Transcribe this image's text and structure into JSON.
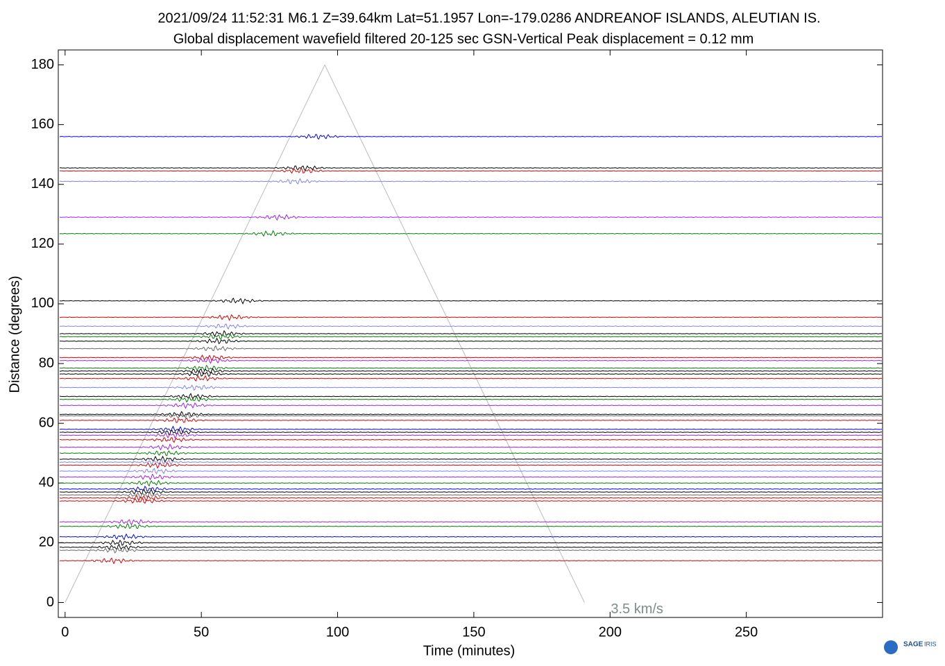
{
  "chart_data": {
    "type": "record_section",
    "title": "2021/09/24  11:52:31  M6.1  Z=39.64km  Lat=51.1957 Lon=-179.0286  ANDREANOF ISLANDS, ALEUTIAN IS.",
    "subtitle": "Global displacement wavefield     filtered 20-125 sec    GSN-Vertical    Peak displacement = 0.12 mm",
    "xlabel": "Time (minutes)",
    "ylabel": "Distance (degrees)",
    "xlim": [
      -2.5,
      300
    ],
    "xticks": [
      0,
      50,
      100,
      150,
      200,
      250
    ],
    "ylim": [
      -5,
      185
    ],
    "yticks": [
      0,
      20,
      40,
      60,
      80,
      100,
      120,
      140,
      160,
      180
    ],
    "velocity_line": {
      "label": "3.5 km/s",
      "color": "#bbbbbb",
      "x": [
        0,
        95.3,
        190.6
      ],
      "y": [
        0,
        180,
        0
      ]
    },
    "traces": [
      {
        "distance": 156,
        "color": "#0000ff"
      },
      {
        "distance": 145.5,
        "color": "#000000"
      },
      {
        "distance": 144.5,
        "color": "#dd0000"
      },
      {
        "distance": 141,
        "color": "#8080ff"
      },
      {
        "distance": 129,
        "color": "#a020f0"
      },
      {
        "distance": 123.5,
        "color": "#008000"
      },
      {
        "distance": 101,
        "color": "#000000"
      },
      {
        "distance": 95.5,
        "color": "#dd0000"
      },
      {
        "distance": 92.5,
        "color": "#8080ff"
      },
      {
        "distance": 90,
        "color": "#000000"
      },
      {
        "distance": 89,
        "color": "#008000"
      },
      {
        "distance": 87.5,
        "color": "#000000"
      },
      {
        "distance": 85,
        "color": "#666666"
      },
      {
        "distance": 82,
        "color": "#dd0000"
      },
      {
        "distance": 81,
        "color": "#a020f0"
      },
      {
        "distance": 78.5,
        "color": "#008000"
      },
      {
        "distance": 77.5,
        "color": "#000000"
      },
      {
        "distance": 76.5,
        "color": "#000000"
      },
      {
        "distance": 75,
        "color": "#dd0000"
      },
      {
        "distance": 72,
        "color": "#8080ff"
      },
      {
        "distance": 69,
        "color": "#000000"
      },
      {
        "distance": 68,
        "color": "#008000"
      },
      {
        "distance": 66,
        "color": "#a020f0"
      },
      {
        "distance": 63,
        "color": "#000000"
      },
      {
        "distance": 62.5,
        "color": "#666666"
      },
      {
        "distance": 61,
        "color": "#dd0000"
      },
      {
        "distance": 58,
        "color": "#0000ff"
      },
      {
        "distance": 57,
        "color": "#000000"
      },
      {
        "distance": 56,
        "color": "#a020f0"
      },
      {
        "distance": 54.5,
        "color": "#dd0000"
      },
      {
        "distance": 52,
        "color": "#a020f0"
      },
      {
        "distance": 50,
        "color": "#008000"
      },
      {
        "distance": 48,
        "color": "#000000"
      },
      {
        "distance": 47,
        "color": "#8080ff"
      },
      {
        "distance": 46,
        "color": "#dd0000"
      },
      {
        "distance": 44,
        "color": "#8080ff"
      },
      {
        "distance": 42,
        "color": "#a020f0"
      },
      {
        "distance": 40,
        "color": "#008000"
      },
      {
        "distance": 38,
        "color": "#0000ff"
      },
      {
        "distance": 37,
        "color": "#000000"
      },
      {
        "distance": 36,
        "color": "#666666"
      },
      {
        "distance": 35,
        "color": "#dd0000"
      },
      {
        "distance": 34,
        "color": "#dd0000"
      },
      {
        "distance": 27,
        "color": "#a020f0"
      },
      {
        "distance": 25.5,
        "color": "#008000"
      },
      {
        "distance": 22,
        "color": "#0000ff"
      },
      {
        "distance": 20,
        "color": "#000000"
      },
      {
        "distance": 18.5,
        "color": "#000000"
      },
      {
        "distance": 17.5,
        "color": "#666666"
      },
      {
        "distance": 14,
        "color": "#dd0000"
      }
    ]
  },
  "logo": {
    "name": "SAGE",
    "sub": "IRIS"
  }
}
